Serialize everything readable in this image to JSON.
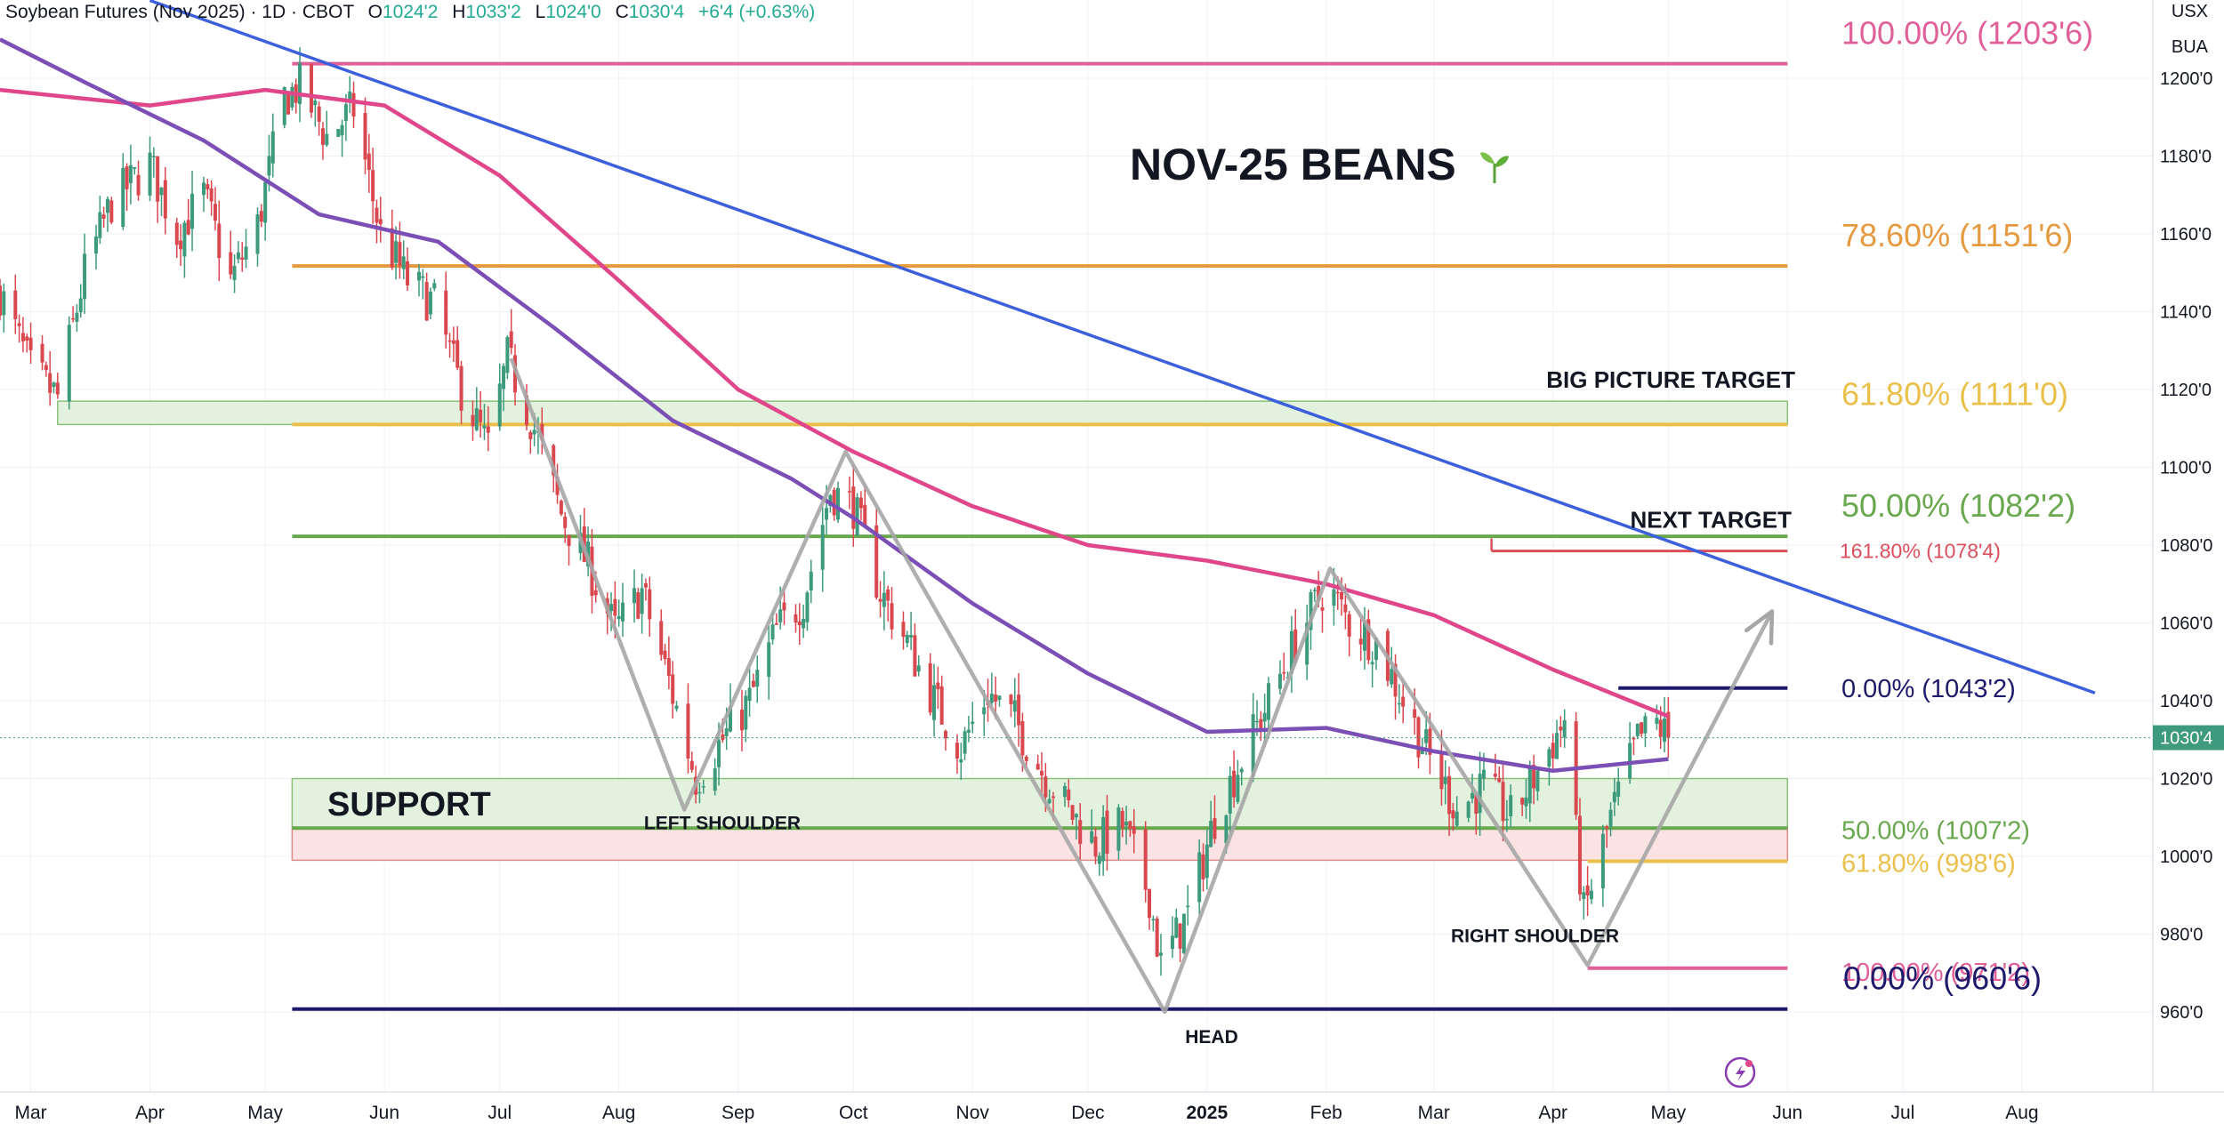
{
  "header": {
    "symbol_title": "Soybean Futures (Nov 2025) · 1D · CBOT",
    "open_label": "O",
    "open_value": "1024'2",
    "high_label": "H",
    "high_value": "1033'2",
    "low_label": "L",
    "low_value": "1024'0",
    "close_label": "C",
    "close_value": "1030'4",
    "change": "+6'4 (+0.63%)"
  },
  "corner": {
    "currency": "USX",
    "unit": "BUA"
  },
  "chart_data": {
    "type": "candlestick",
    "title": "NOV-25 BEANS",
    "title_icon": "seedling-icon",
    "y_axis": {
      "range": [
        948,
        1216
      ],
      "ticks": [
        "1200'0",
        "1180'0",
        "1160'0",
        "1140'0",
        "1120'0",
        "1100'0",
        "1080'0",
        "1060'0",
        "1040'0",
        "1020'0",
        "1000'0",
        "980'0",
        "960'0"
      ],
      "tick_values": [
        1200,
        1180,
        1160,
        1140,
        1120,
        1100,
        1080,
        1060,
        1040,
        1020,
        1000,
        980,
        960
      ],
      "last_price_label": "1030'4",
      "last_price": 1030.5
    },
    "x_axis": {
      "range": [
        "2024-02-22",
        "2025-08-20"
      ],
      "ticks": [
        "Mar",
        "Apr",
        "May",
        "Jun",
        "Jul",
        "Aug",
        "Sep",
        "Oct",
        "Nov",
        "Dec",
        "2025",
        "Feb",
        "Mar",
        "Apr",
        "May",
        "Jun",
        "Jul",
        "Aug"
      ],
      "tick_dates": [
        "2024-03-01",
        "2024-04-01",
        "2024-05-01",
        "2024-06-01",
        "2024-07-01",
        "2024-08-01",
        "2024-09-01",
        "2024-10-01",
        "2024-11-01",
        "2024-12-01",
        "2025-01-01",
        "2025-02-01",
        "2025-03-01",
        "2025-04-01",
        "2025-05-01",
        "2025-06-01",
        "2025-07-01",
        "2025-08-01"
      ],
      "bold_tick": "2025"
    },
    "price_path": [
      [
        "2024-02-22",
        1145
      ],
      [
        "2024-03-01",
        1125
      ],
      [
        "2024-03-08",
        1118
      ],
      [
        "2024-03-15",
        1150
      ],
      [
        "2024-03-22",
        1168
      ],
      [
        "2024-04-01",
        1178
      ],
      [
        "2024-04-08",
        1160
      ],
      [
        "2024-04-15",
        1170
      ],
      [
        "2024-04-22",
        1148
      ],
      [
        "2024-04-29",
        1162
      ],
      [
        "2024-05-06",
        1195
      ],
      [
        "2024-05-10",
        1198
      ],
      [
        "2024-05-17",
        1185
      ],
      [
        "2024-05-24",
        1192
      ],
      [
        "2024-05-31",
        1160
      ],
      [
        "2024-06-07",
        1148
      ],
      [
        "2024-06-14",
        1142
      ],
      [
        "2024-06-21",
        1120
      ],
      [
        "2024-06-28",
        1105
      ],
      [
        "2024-07-03",
        1128
      ],
      [
        "2024-07-10",
        1110
      ],
      [
        "2024-07-17",
        1088
      ],
      [
        "2024-07-24",
        1075
      ],
      [
        "2024-07-31",
        1058
      ],
      [
        "2024-08-07",
        1068
      ],
      [
        "2024-08-14",
        1045
      ],
      [
        "2024-08-21",
        1020
      ],
      [
        "2024-08-28",
        1030
      ],
      [
        "2024-09-04",
        1040
      ],
      [
        "2024-09-11",
        1058
      ],
      [
        "2024-09-18",
        1066
      ],
      [
        "2024-09-25",
        1094
      ],
      [
        "2024-10-01",
        1090
      ],
      [
        "2024-10-08",
        1068
      ],
      [
        "2024-10-15",
        1055
      ],
      [
        "2024-10-22",
        1040
      ],
      [
        "2024-10-29",
        1028
      ],
      [
        "2024-11-05",
        1042
      ],
      [
        "2024-11-12",
        1035
      ],
      [
        "2024-11-19",
        1022
      ],
      [
        "2024-11-26",
        1012
      ],
      [
        "2024-12-03",
        1003
      ],
      [
        "2024-12-10",
        1008
      ],
      [
        "2024-12-17",
        990
      ],
      [
        "2024-12-20",
        972
      ],
      [
        "2024-12-27",
        985
      ],
      [
        "2025-01-03",
        1010
      ],
      [
        "2025-01-10",
        1025
      ],
      [
        "2025-01-17",
        1040
      ],
      [
        "2025-01-24",
        1055
      ],
      [
        "2025-02-01",
        1070
      ],
      [
        "2025-02-07",
        1060
      ],
      [
        "2025-02-14",
        1055
      ],
      [
        "2025-02-21",
        1040
      ],
      [
        "2025-02-28",
        1025
      ],
      [
        "2025-03-07",
        1012
      ],
      [
        "2025-03-14",
        1018
      ],
      [
        "2025-03-21",
        1010
      ],
      [
        "2025-03-28",
        1022
      ],
      [
        "2025-04-04",
        1035
      ],
      [
        "2025-04-09",
        985
      ],
      [
        "2025-04-16",
        1010
      ],
      [
        "2025-04-23",
        1030
      ],
      [
        "2025-04-28",
        1034
      ],
      [
        "2025-05-01",
        1030.5
      ]
    ],
    "moving_averages": [
      {
        "color": "#e0468a",
        "points": [
          [
            "2024-02-22",
            1197
          ],
          [
            "2024-04-01",
            1193
          ],
          [
            "2024-05-01",
            1197
          ],
          [
            "2024-06-01",
            1193
          ],
          [
            "2024-07-01",
            1175
          ],
          [
            "2024-08-01",
            1148
          ],
          [
            "2024-09-01",
            1120
          ],
          [
            "2024-10-01",
            1104
          ],
          [
            "2024-11-01",
            1090
          ],
          [
            "2024-12-01",
            1080
          ],
          [
            "2025-01-01",
            1076
          ],
          [
            "2025-02-01",
            1070
          ],
          [
            "2025-03-01",
            1062
          ],
          [
            "2025-04-01",
            1048
          ],
          [
            "2025-05-01",
            1036
          ]
        ]
      },
      {
        "color": "#7b4fb5",
        "points": [
          [
            "2024-02-22",
            1210
          ],
          [
            "2024-03-15",
            1199
          ],
          [
            "2024-04-15",
            1184
          ],
          [
            "2024-05-15",
            1165
          ],
          [
            "2024-06-15",
            1158
          ],
          [
            "2024-07-15",
            1136
          ],
          [
            "2024-08-15",
            1112
          ],
          [
            "2024-09-15",
            1097
          ],
          [
            "2024-10-01",
            1087
          ],
          [
            "2024-11-01",
            1065
          ],
          [
            "2024-12-01",
            1047
          ],
          [
            "2025-01-01",
            1032
          ],
          [
            "2025-02-01",
            1033
          ],
          [
            "2025-03-01",
            1027
          ],
          [
            "2025-04-01",
            1022
          ],
          [
            "2025-05-01",
            1025
          ]
        ]
      }
    ],
    "pattern_lines": [
      {
        "color": "#a6a6a6",
        "points": [
          [
            "2024-07-04",
            1128
          ],
          [
            "2024-08-18",
            1012
          ],
          [
            "2024-09-29",
            1104
          ],
          [
            "2024-12-21",
            960
          ],
          [
            "2025-02-02",
            1074
          ],
          [
            "2025-04-10",
            972
          ],
          [
            "2025-05-28",
            1063
          ]
        ]
      }
    ],
    "trend_lines": [
      {
        "color": "#3c5fdc",
        "points": [
          [
            "2024-04-01",
            1220
          ],
          [
            "2025-08-20",
            1042
          ]
        ]
      }
    ],
    "horizontal_levels": [
      {
        "value": 1203.75,
        "color": "#e0609a",
        "from": "2024-05-08",
        "to": "2025-06-01",
        "label": "100.00% (1203'6)"
      },
      {
        "value": 1151.75,
        "color": "#e69a40",
        "from": "2024-05-08",
        "to": "2025-06-01",
        "label": "78.60% (1151'6)"
      },
      {
        "value": 1111.0,
        "color": "#ebc04a",
        "from": "2024-05-08",
        "to": "2025-06-01",
        "label": "61.80% (1111'0)"
      },
      {
        "value": 1082.25,
        "color": "#6aa84f",
        "from": "2024-05-08",
        "to": "2025-06-01",
        "label": "50.00% (1082'2)"
      },
      {
        "value": 1078.5,
        "color": "#d94f5c",
        "from": "2025-03-16",
        "to": "2025-06-01",
        "label": "161.80% (1078'4)"
      },
      {
        "value": 1043.25,
        "color": "#1e1a6b",
        "from": "2025-04-18",
        "to": "2025-06-01",
        "label": "0.00% (1043'2)"
      },
      {
        "value": 1007.25,
        "color": "#6aa84f",
        "from": "2024-05-08",
        "to": "2025-06-01",
        "label": "50.00% (1007'2)"
      },
      {
        "value": 998.75,
        "color": "#ebc04a",
        "from": "2025-04-10",
        "to": "2025-06-01",
        "label": "61.80% (998'6)"
      },
      {
        "value": 971.25,
        "color": "#e0609a",
        "from": "2025-04-10",
        "to": "2025-06-01",
        "label": "100.00% (971'2)"
      },
      {
        "value": 960.75,
        "color": "#1e1a6b",
        "from": "2024-05-08",
        "to": "2025-06-01",
        "label": "0.00% (960'6)"
      }
    ],
    "zones": [
      {
        "name": "BIG PICTURE TARGET",
        "from": "2024-03-08",
        "to": "2025-06-01",
        "low": 1111,
        "high": 1117,
        "fill": "#e3f2df",
        "stroke": "#8cc07a"
      },
      {
        "name": "SUPPORT",
        "from": "2024-05-08",
        "to": "2025-06-01",
        "low": 1007.25,
        "high": 1020,
        "fill": "#e3f2df",
        "stroke": "#8cc07a"
      },
      {
        "name": "support-lower",
        "from": "2024-05-08",
        "to": "2025-06-01",
        "low": 999,
        "high": 1007.25,
        "fill": "#fbe3e3",
        "stroke": "#e08a8a"
      }
    ],
    "annotations": [
      {
        "text": "BIG PICTURE TARGET",
        "date": "2025-03-30",
        "value": 1120.5
      },
      {
        "text": "NEXT TARGET",
        "date": "2025-04-10",
        "value": 1084.5
      },
      {
        "text": "SUPPORT",
        "date": "2024-06-10",
        "value": 1010.5
      },
      {
        "text": "LEFT SHOULDER",
        "date": "2024-08-20",
        "value": 1007
      },
      {
        "text": "HEAD",
        "date": "2024-12-21",
        "value": 952
      },
      {
        "text": "RIGHT SHOULDER",
        "date": "2025-03-10",
        "value": 978
      }
    ]
  }
}
